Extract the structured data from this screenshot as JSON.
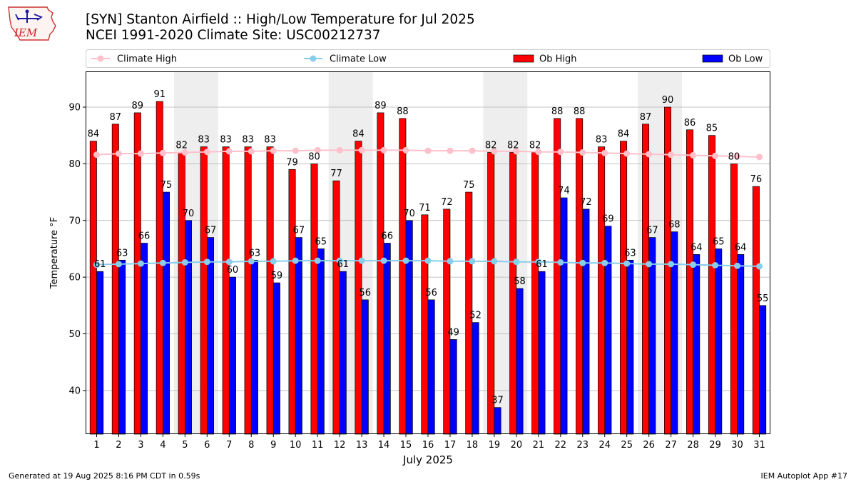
{
  "header": {
    "title_line1": "[SYN] Stanton Airfield :: High/Low Temperature for Jul 2025",
    "title_line2": "NCEI 1991-2020 Climate Site: USC00212737"
  },
  "logo": {
    "text": "IEM"
  },
  "footer": {
    "generated": "Generated at 19 Aug 2025 8:16 PM CDT in 0.59s",
    "app": "IEM Autoplot App #17"
  },
  "colors": {
    "ob_high": "#ff0000",
    "ob_low": "#0000ff",
    "climate_high": "#ffc0cb",
    "climate_low": "#87ceeb",
    "weekend_band": "#eeeeee",
    "grid": "#b0b0b0"
  },
  "chart_data": {
    "type": "bar",
    "title": "[SYN] Stanton Airfield :: High/Low Temperature for Jul 2025",
    "subtitle": "NCEI 1991-2020 Climate Site: USC00212737",
    "xlabel": "July 2025",
    "ylabel": "Temperature °F",
    "ylim": [
      32.3,
      96.3
    ],
    "yticks": [
      40,
      50,
      60,
      70,
      80,
      90
    ],
    "grid": true,
    "legend_position": "top",
    "categories": [
      "1",
      "2",
      "3",
      "4",
      "5",
      "6",
      "7",
      "8",
      "9",
      "10",
      "11",
      "12",
      "13",
      "14",
      "15",
      "16",
      "17",
      "18",
      "19",
      "20",
      "21",
      "22",
      "23",
      "24",
      "25",
      "26",
      "27",
      "28",
      "29",
      "30",
      "31"
    ],
    "weekend_days": [
      [
        5,
        6
      ],
      [
        12,
        13
      ],
      [
        19,
        20
      ],
      [
        26,
        27
      ]
    ],
    "series": [
      {
        "name": "Ob High",
        "kind": "bar",
        "values": [
          84,
          87,
          89,
          91,
          82,
          83,
          83,
          83,
          83,
          79,
          80,
          77,
          84,
          89,
          88,
          71,
          72,
          75,
          82,
          82,
          82,
          88,
          88,
          83,
          84,
          87,
          90,
          86,
          85,
          80,
          76
        ]
      },
      {
        "name": "Ob Low",
        "kind": "bar",
        "values": [
          61,
          63,
          66,
          75,
          70,
          67,
          60,
          63,
          59,
          67,
          65,
          61,
          56,
          66,
          70,
          56,
          49,
          52,
          37,
          58,
          61,
          74,
          72,
          69,
          63,
          67,
          68,
          64,
          65,
          64,
          55
        ]
      },
      {
        "name": "Climate High",
        "kind": "line",
        "values": [
          81.6,
          81.8,
          81.8,
          81.9,
          82.0,
          82.1,
          82.2,
          82.2,
          82.3,
          82.3,
          82.4,
          82.4,
          82.4,
          82.4,
          82.4,
          82.3,
          82.3,
          82.3,
          82.2,
          82.2,
          82.1,
          82.1,
          82.0,
          81.9,
          81.8,
          81.7,
          81.6,
          81.5,
          81.4,
          81.3,
          81.2
        ]
      },
      {
        "name": "Climate Low",
        "kind": "line",
        "values": [
          62.2,
          62.3,
          62.4,
          62.5,
          62.6,
          62.7,
          62.7,
          62.8,
          62.8,
          62.9,
          62.9,
          62.9,
          62.9,
          62.9,
          62.9,
          62.9,
          62.8,
          62.8,
          62.8,
          62.7,
          62.7,
          62.6,
          62.5,
          62.5,
          62.4,
          62.3,
          62.3,
          62.2,
          62.1,
          62.0,
          61.9
        ]
      }
    ],
    "legend": [
      "Climate High",
      "Climate Low",
      "Ob High",
      "Ob Low"
    ]
  }
}
